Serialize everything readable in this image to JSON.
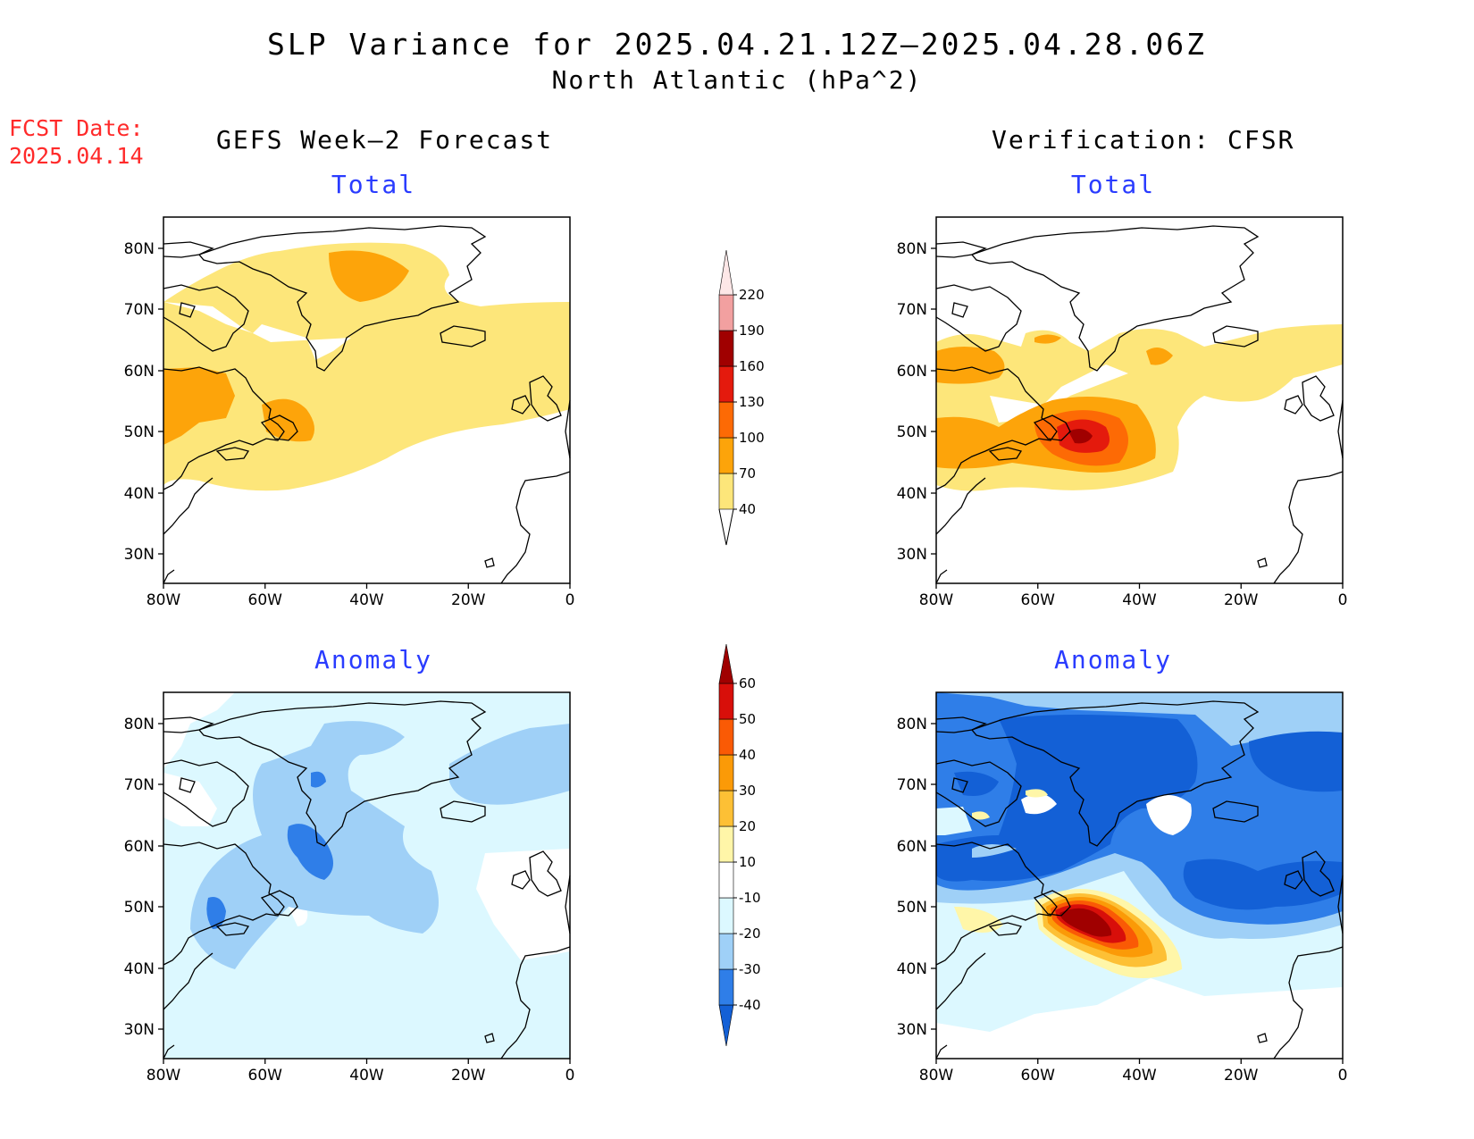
{
  "title": {
    "line1": "SLP Variance for 2025.04.21.12Z–2025.04.28.06Z",
    "line2": "North Atlantic (hPa^2)"
  },
  "fcst": {
    "label": "FCST Date:",
    "date": "2025.04.14"
  },
  "columns": {
    "left": "GEFS Week–2 Forecast",
    "right": "Verification: CFSR"
  },
  "panels": {
    "tl": "Total",
    "tr": "Total",
    "bl": "Anomaly",
    "br": "Anomaly"
  },
  "axes": {
    "lat_labels": [
      "80N",
      "70N",
      "60N",
      "50N",
      "40N",
      "30N"
    ],
    "lon_labels": [
      "80W",
      "60W",
      "40W",
      "20W",
      "0"
    ]
  },
  "colorbar_total": {
    "labels": [
      "40",
      "70",
      "100",
      "130",
      "160",
      "190",
      "220"
    ],
    "colors": [
      "#fde67a",
      "#fda40a",
      "#fd6a05",
      "#e41a0d",
      "#a00000",
      "#f2a0a0",
      "#fde7e7"
    ]
  },
  "colorbar_anomaly": {
    "labels": [
      "-40",
      "-30",
      "-20",
      "-10",
      "10",
      "20",
      "30",
      "40",
      "50",
      "60"
    ],
    "colors": [
      "#1360d6",
      "#2f7ee8",
      "#9fd0f7",
      "#dcf8ff",
      "#ffffff",
      "#fff6a8",
      "#fdc035",
      "#fb9a07",
      "#fa5a05",
      "#d80f0a",
      "#a00000"
    ]
  }
}
